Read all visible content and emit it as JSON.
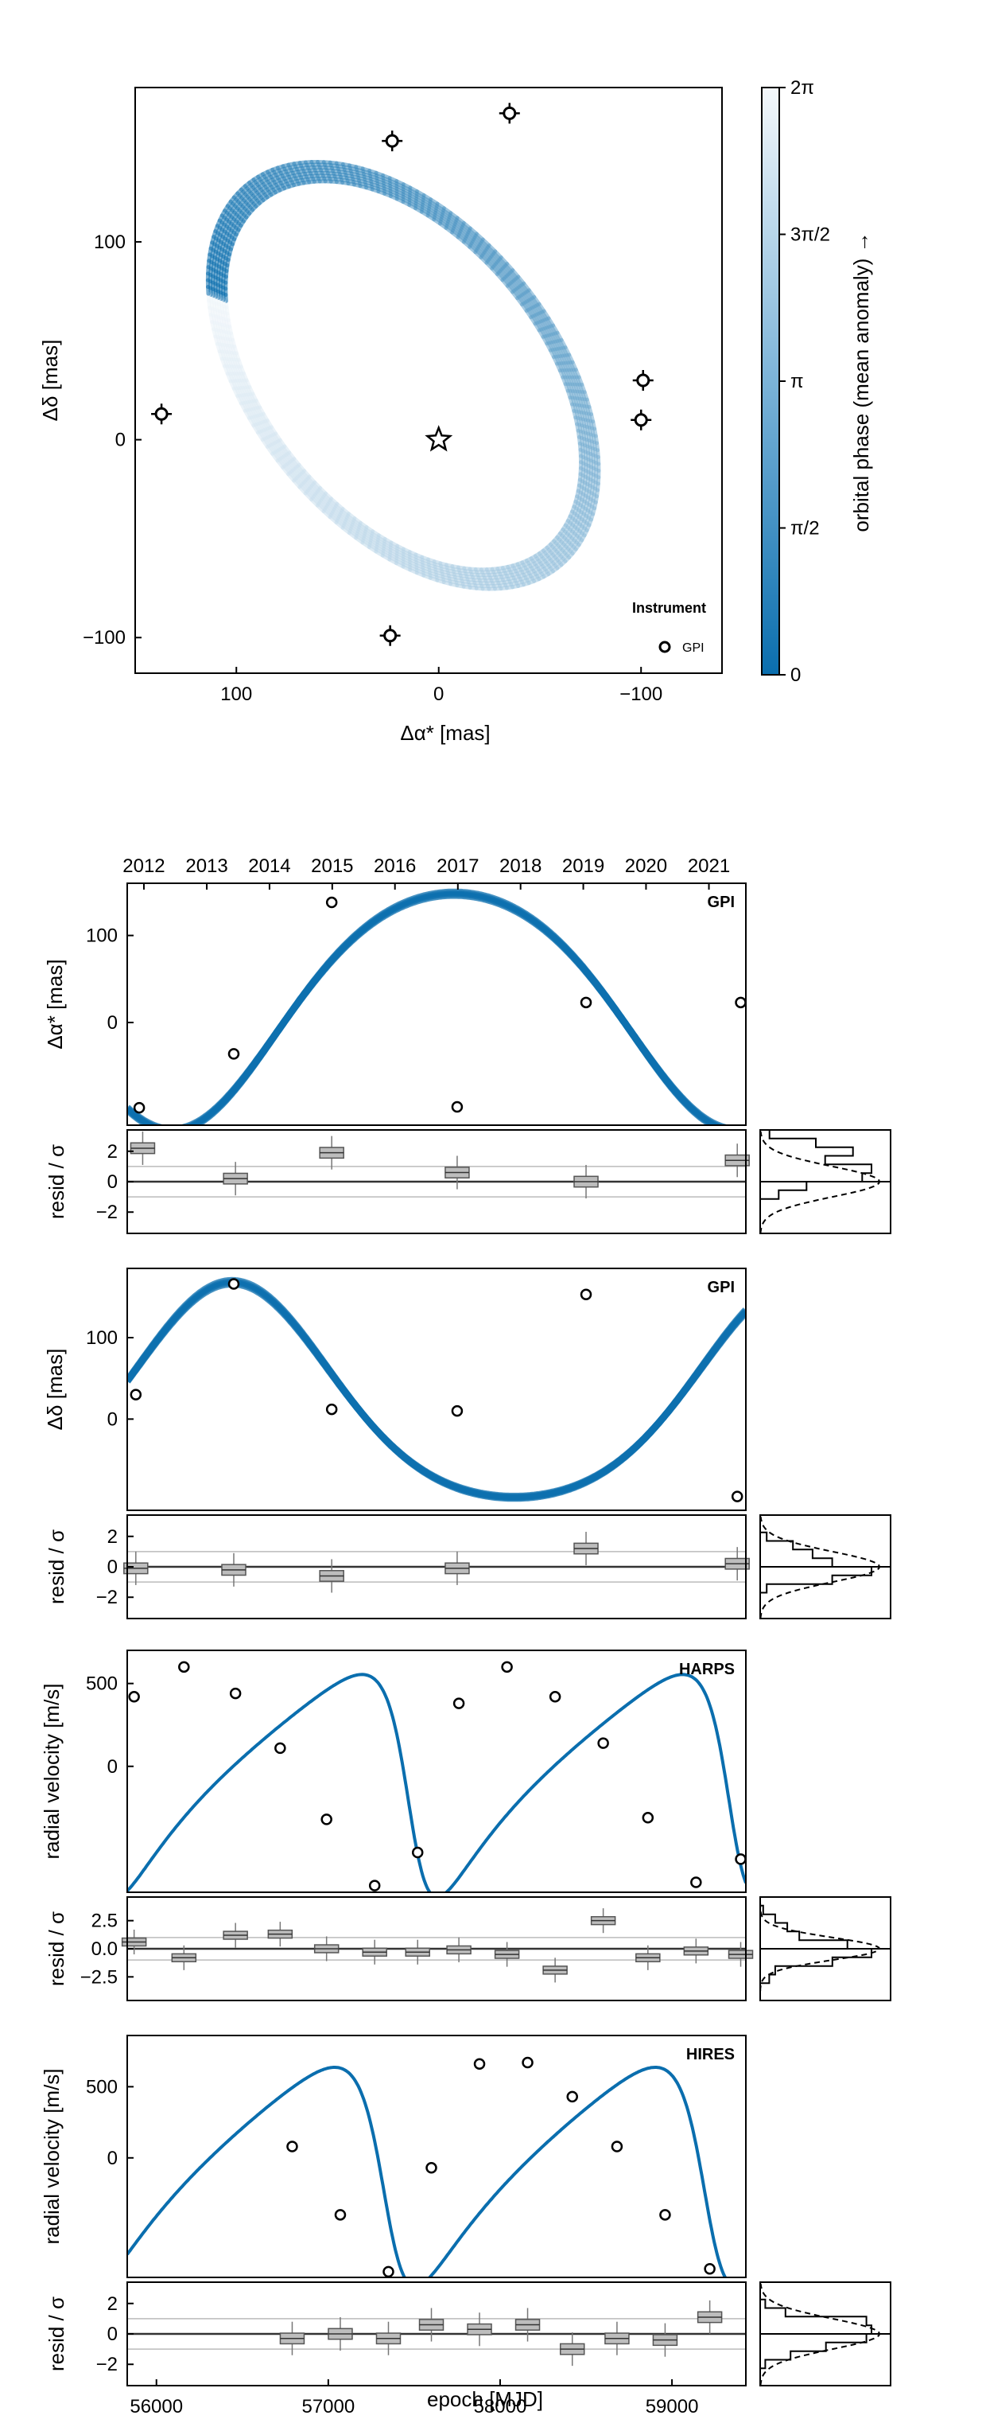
{
  "colors": {
    "accent": "#0A6EAE",
    "accent_light": "#EEF4F9",
    "resid_box": "#BDBDBD",
    "axis": "#000000",
    "zero_line": "#555555",
    "sigma_line": "#BBBBBB"
  },
  "chart_data": [
    {
      "type": "scatter",
      "id": "sky",
      "xlabel": "Δα* [mas]",
      "ylabel": "Δδ [mas]",
      "xlim": [
        150,
        -140
      ],
      "ylim": [
        -118,
        178
      ],
      "xticks": [
        "100",
        "0",
        "−100"
      ],
      "yticks": [
        "−100",
        "0",
        "100"
      ],
      "orbit": {
        "cx": 17.5,
        "cy": 32.5,
        "a": 118,
        "b": 72,
        "rotation_deg": 52
      },
      "points": [
        {
          "x": 137,
          "y": 13
        },
        {
          "x": 23,
          "y": 151
        },
        {
          "x": -35,
          "y": 165
        },
        {
          "x": -101,
          "y": 30
        },
        {
          "x": -100,
          "y": 10
        },
        {
          "x": 24,
          "y": -99
        }
      ],
      "star": {
        "x": 0,
        "y": 0
      },
      "legend": {
        "title": "Instrument",
        "entries": [
          "GPI"
        ],
        "position": "bottom-right"
      },
      "colorbar": {
        "label": "orbital phase (mean anomaly) →",
        "ticks": [
          "0",
          "π/2",
          "π",
          "3π/2",
          "2π"
        ]
      }
    },
    {
      "type": "line",
      "id": "ra",
      "instrument": "GPI",
      "ylabel": "Δα* [mas]",
      "xlim": [
        55830,
        59430
      ],
      "ylim": [
        -118,
        160
      ],
      "yticks": [
        "0",
        "100"
      ],
      "model": {
        "period": 3285,
        "amplitude": 136,
        "center": 12,
        "phase0": 56090,
        "shape": "pos_ra"
      },
      "points": [
        {
          "x": 55900,
          "y": -98
        },
        {
          "x": 56450,
          "y": -36
        },
        {
          "x": 57020,
          "y": 138
        },
        {
          "x": 57750,
          "y": -97
        },
        {
          "x": 58500,
          "y": 23
        },
        {
          "x": 59400,
          "y": 23
        }
      ],
      "resid": {
        "ylabel": "resid / σ",
        "ylim": [
          -3.4,
          3.4
        ],
        "yticks": [
          "2",
          "0",
          "−2"
        ],
        "values": [
          {
            "x": 55920,
            "y": 2.2
          },
          {
            "x": 56460,
            "y": 0.2
          },
          {
            "x": 57020,
            "y": 1.9
          },
          {
            "x": 57750,
            "y": 0.6
          },
          {
            "x": 58500,
            "y": 0.0
          },
          {
            "x": 59380,
            "y": 1.4
          }
        ]
      },
      "hist": true
    },
    {
      "type": "line",
      "id": "dec",
      "instrument": "GPI",
      "ylabel": "Δδ [mas]",
      "xlim": [
        55830,
        59430
      ],
      "ylim": [
        -112,
        185
      ],
      "yticks": [
        "0",
        "100"
      ],
      "model": {
        "period": 3285,
        "amplitude": 132,
        "center": 36,
        "phase0": 56440,
        "shape": "pos_dec"
      },
      "points": [
        {
          "x": 55880,
          "y": 30
        },
        {
          "x": 56450,
          "y": 166
        },
        {
          "x": 57020,
          "y": 12
        },
        {
          "x": 57750,
          "y": 10
        },
        {
          "x": 58500,
          "y": 153
        },
        {
          "x": 59380,
          "y": -95
        }
      ],
      "resid": {
        "ylabel": "resid / σ",
        "ylim": [
          -3.4,
          3.4
        ],
        "yticks": [
          "2",
          "0",
          "−2"
        ],
        "values": [
          {
            "x": 55880,
            "y": -0.1
          },
          {
            "x": 56450,
            "y": -0.2
          },
          {
            "x": 57020,
            "y": -0.6
          },
          {
            "x": 57750,
            "y": -0.1
          },
          {
            "x": 58500,
            "y": 1.2
          },
          {
            "x": 59380,
            "y": 0.2
          }
        ]
      },
      "hist": true
    },
    {
      "type": "line",
      "id": "harps",
      "instrument": "HARPS",
      "ylabel": "radial velocity [m/s]",
      "xlim": [
        55830,
        59430
      ],
      "ylim": [
        -760,
        700
      ],
      "yticks": [
        "0",
        "500"
      ],
      "model": {
        "period": 1866,
        "K": 680,
        "offset": -20,
        "ecc": 0.45,
        "phase0": 55620
      },
      "points": [
        {
          "x": 55870,
          "y": 420
        },
        {
          "x": 56160,
          "y": 600
        },
        {
          "x": 56460,
          "y": 440
        },
        {
          "x": 56720,
          "y": 110
        },
        {
          "x": 56990,
          "y": -320
        },
        {
          "x": 57270,
          "y": -720
        },
        {
          "x": 57520,
          "y": -520
        },
        {
          "x": 57760,
          "y": 380
        },
        {
          "x": 58040,
          "y": 600
        },
        {
          "x": 58320,
          "y": 420
        },
        {
          "x": 58600,
          "y": 140
        },
        {
          "x": 58860,
          "y": -310
        },
        {
          "x": 59140,
          "y": -700
        },
        {
          "x": 59400,
          "y": -560
        }
      ],
      "resid": {
        "ylabel": "resid / σ",
        "ylim": [
          -4.6,
          4.6
        ],
        "yticks": [
          "2.5",
          "0.0",
          "−2.5"
        ],
        "values": [
          {
            "x": 55870,
            "y": 0.6
          },
          {
            "x": 56160,
            "y": -0.8
          },
          {
            "x": 56460,
            "y": 1.2
          },
          {
            "x": 56720,
            "y": 1.3
          },
          {
            "x": 56990,
            "y": 0.0
          },
          {
            "x": 57270,
            "y": -0.3
          },
          {
            "x": 57520,
            "y": -0.3
          },
          {
            "x": 57760,
            "y": -0.1
          },
          {
            "x": 58040,
            "y": -0.5
          },
          {
            "x": 58320,
            "y": -1.9
          },
          {
            "x": 58600,
            "y": 2.5
          },
          {
            "x": 58860,
            "y": -0.8
          },
          {
            "x": 59140,
            "y": -0.2
          },
          {
            "x": 59400,
            "y": -0.5
          }
        ]
      },
      "hist": true
    },
    {
      "type": "line",
      "id": "hires",
      "instrument": "HIRES",
      "ylabel": "radial velocity [m/s]",
      "xlim": [
        55830,
        59430
      ],
      "ylim": [
        -840,
        860
      ],
      "yticks": [
        "0",
        "500"
      ],
      "model": {
        "period": 1866,
        "K": 780,
        "offset": -30,
        "ecc": 0.42,
        "phase0": 55480
      },
      "points": [
        {
          "x": 56790,
          "y": 80
        },
        {
          "x": 57070,
          "y": -400
        },
        {
          "x": 57350,
          "y": -800
        },
        {
          "x": 57600,
          "y": -70
        },
        {
          "x": 57880,
          "y": 660
        },
        {
          "x": 58160,
          "y": 670
        },
        {
          "x": 58420,
          "y": 430
        },
        {
          "x": 58680,
          "y": 80
        },
        {
          "x": 58960,
          "y": -400
        },
        {
          "x": 59220,
          "y": -780
        }
      ],
      "resid": {
        "ylabel": "resid / σ",
        "ylim": [
          -3.4,
          3.4
        ],
        "yticks": [
          "2",
          "0",
          "−2"
        ],
        "values": [
          {
            "x": 56790,
            "y": -0.3
          },
          {
            "x": 57070,
            "y": 0.0
          },
          {
            "x": 57350,
            "y": -0.3
          },
          {
            "x": 57600,
            "y": 0.6
          },
          {
            "x": 57880,
            "y": 0.3
          },
          {
            "x": 58160,
            "y": 0.6
          },
          {
            "x": 58420,
            "y": -1.0
          },
          {
            "x": 58680,
            "y": -0.3
          },
          {
            "x": 58960,
            "y": -0.4
          },
          {
            "x": 59220,
            "y": 1.1
          }
        ]
      },
      "hist": true
    }
  ],
  "time_axis": {
    "top_year_ticks": [
      "2012",
      "2013",
      "2014",
      "2015",
      "2016",
      "2017",
      "2018",
      "2019",
      "2020",
      "2021"
    ],
    "top_year_mjd": [
      55927,
      56293,
      56658,
      57023,
      57388,
      57754,
      58119,
      58484,
      58849,
      59215
    ],
    "bottom_ticks": [
      "56000",
      "57000",
      "58000",
      "59000"
    ],
    "bottom_mjd": [
      56000,
      57000,
      58000,
      59000
    ],
    "xlabel": "epoch [MJD]"
  }
}
